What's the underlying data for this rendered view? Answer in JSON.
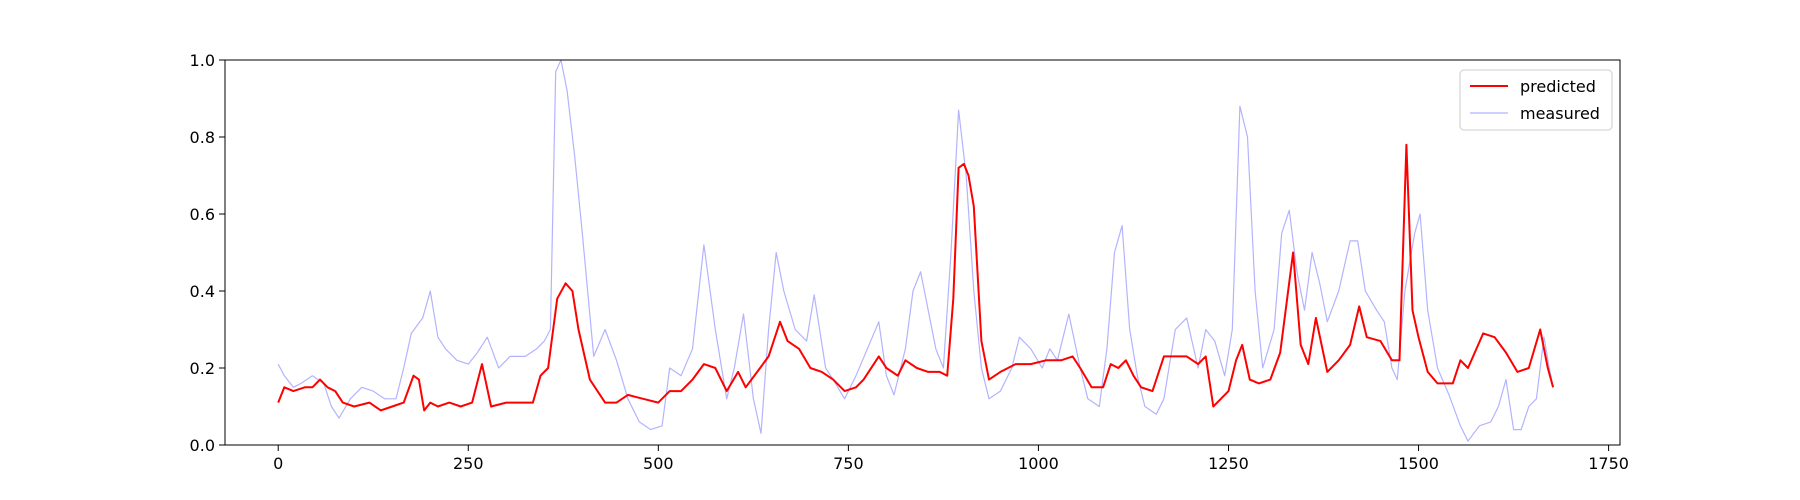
{
  "chart_data": {
    "type": "line",
    "title": "",
    "xlabel": "",
    "ylabel": "",
    "xlim": [
      -70,
      1765
    ],
    "ylim": [
      0.0,
      1.0
    ],
    "grid": false,
    "legend_position": "top-right",
    "x_ticks": [
      0,
      250,
      500,
      750,
      1000,
      1250,
      1500,
      1750
    ],
    "x_tick_labels": [
      "0",
      "250",
      "500",
      "750",
      "1000",
      "1250",
      "1500",
      "1750"
    ],
    "y_ticks": [
      0.0,
      0.2,
      0.4,
      0.6,
      0.8,
      1.0
    ],
    "y_tick_labels": [
      "0.0",
      "0.2",
      "0.4",
      "0.6",
      "0.8",
      "1.0"
    ],
    "series": [
      {
        "name": "predicted",
        "color": "#ff0000",
        "points": [
          [
            0,
            0.11
          ],
          [
            8,
            0.15
          ],
          [
            20,
            0.14
          ],
          [
            35,
            0.15
          ],
          [
            45,
            0.15
          ],
          [
            55,
            0.17
          ],
          [
            65,
            0.15
          ],
          [
            75,
            0.14
          ],
          [
            85,
            0.11
          ],
          [
            100,
            0.1
          ],
          [
            120,
            0.11
          ],
          [
            135,
            0.09
          ],
          [
            150,
            0.1
          ],
          [
            165,
            0.11
          ],
          [
            178,
            0.18
          ],
          [
            185,
            0.17
          ],
          [
            192,
            0.09
          ],
          [
            200,
            0.11
          ],
          [
            210,
            0.1
          ],
          [
            225,
            0.11
          ],
          [
            240,
            0.1
          ],
          [
            255,
            0.11
          ],
          [
            268,
            0.21
          ],
          [
            280,
            0.1
          ],
          [
            300,
            0.11
          ],
          [
            320,
            0.11
          ],
          [
            335,
            0.11
          ],
          [
            345,
            0.18
          ],
          [
            355,
            0.2
          ],
          [
            367,
            0.38
          ],
          [
            378,
            0.42
          ],
          [
            387,
            0.4
          ],
          [
            395,
            0.3
          ],
          [
            410,
            0.17
          ],
          [
            430,
            0.11
          ],
          [
            445,
            0.11
          ],
          [
            460,
            0.13
          ],
          [
            480,
            0.12
          ],
          [
            500,
            0.11
          ],
          [
            515,
            0.14
          ],
          [
            530,
            0.14
          ],
          [
            545,
            0.17
          ],
          [
            560,
            0.21
          ],
          [
            575,
            0.2
          ],
          [
            590,
            0.14
          ],
          [
            605,
            0.19
          ],
          [
            615,
            0.15
          ],
          [
            630,
            0.19
          ],
          [
            645,
            0.23
          ],
          [
            660,
            0.32
          ],
          [
            670,
            0.27
          ],
          [
            685,
            0.25
          ],
          [
            700,
            0.2
          ],
          [
            715,
            0.19
          ],
          [
            730,
            0.17
          ],
          [
            745,
            0.14
          ],
          [
            760,
            0.15
          ],
          [
            770,
            0.17
          ],
          [
            790,
            0.23
          ],
          [
            800,
            0.2
          ],
          [
            815,
            0.18
          ],
          [
            825,
            0.22
          ],
          [
            840,
            0.2
          ],
          [
            855,
            0.19
          ],
          [
            870,
            0.19
          ],
          [
            880,
            0.18
          ],
          [
            888,
            0.38
          ],
          [
            895,
            0.72
          ],
          [
            902,
            0.73
          ],
          [
            908,
            0.7
          ],
          [
            915,
            0.62
          ],
          [
            925,
            0.27
          ],
          [
            935,
            0.17
          ],
          [
            950,
            0.19
          ],
          [
            970,
            0.21
          ],
          [
            990,
            0.21
          ],
          [
            1010,
            0.22
          ],
          [
            1030,
            0.22
          ],
          [
            1045,
            0.23
          ],
          [
            1055,
            0.2
          ],
          [
            1070,
            0.15
          ],
          [
            1085,
            0.15
          ],
          [
            1095,
            0.21
          ],
          [
            1105,
            0.2
          ],
          [
            1115,
            0.22
          ],
          [
            1125,
            0.18
          ],
          [
            1135,
            0.15
          ],
          [
            1150,
            0.14
          ],
          [
            1165,
            0.23
          ],
          [
            1180,
            0.23
          ],
          [
            1195,
            0.23
          ],
          [
            1210,
            0.21
          ],
          [
            1220,
            0.23
          ],
          [
            1230,
            0.1
          ],
          [
            1240,
            0.12
          ],
          [
            1250,
            0.14
          ],
          [
            1260,
            0.22
          ],
          [
            1268,
            0.26
          ],
          [
            1278,
            0.17
          ],
          [
            1290,
            0.16
          ],
          [
            1305,
            0.17
          ],
          [
            1318,
            0.24
          ],
          [
            1335,
            0.5
          ],
          [
            1345,
            0.26
          ],
          [
            1355,
            0.21
          ],
          [
            1365,
            0.33
          ],
          [
            1380,
            0.19
          ],
          [
            1395,
            0.22
          ],
          [
            1410,
            0.26
          ],
          [
            1422,
            0.36
          ],
          [
            1432,
            0.28
          ],
          [
            1450,
            0.27
          ],
          [
            1465,
            0.22
          ],
          [
            1475,
            0.22
          ],
          [
            1484,
            0.78
          ],
          [
            1492,
            0.35
          ],
          [
            1500,
            0.28
          ],
          [
            1512,
            0.19
          ],
          [
            1525,
            0.16
          ],
          [
            1545,
            0.16
          ],
          [
            1555,
            0.22
          ],
          [
            1565,
            0.2
          ],
          [
            1585,
            0.29
          ],
          [
            1600,
            0.28
          ],
          [
            1615,
            0.24
          ],
          [
            1630,
            0.19
          ],
          [
            1645,
            0.2
          ],
          [
            1660,
            0.3
          ],
          [
            1670,
            0.2
          ],
          [
            1677,
            0.15
          ]
        ]
      },
      {
        "name": "measured",
        "color": "#b3b3ff",
        "points": [
          [
            0,
            0.21
          ],
          [
            8,
            0.18
          ],
          [
            20,
            0.15
          ],
          [
            30,
            0.16
          ],
          [
            45,
            0.18
          ],
          [
            60,
            0.16
          ],
          [
            70,
            0.1
          ],
          [
            80,
            0.07
          ],
          [
            95,
            0.12
          ],
          [
            110,
            0.15
          ],
          [
            125,
            0.14
          ],
          [
            140,
            0.12
          ],
          [
            155,
            0.12
          ],
          [
            165,
            0.2
          ],
          [
            175,
            0.29
          ],
          [
            190,
            0.33
          ],
          [
            200,
            0.4
          ],
          [
            210,
            0.28
          ],
          [
            220,
            0.25
          ],
          [
            235,
            0.22
          ],
          [
            250,
            0.21
          ],
          [
            262,
            0.24
          ],
          [
            275,
            0.28
          ],
          [
            290,
            0.2
          ],
          [
            305,
            0.23
          ],
          [
            325,
            0.23
          ],
          [
            340,
            0.25
          ],
          [
            350,
            0.27
          ],
          [
            358,
            0.3
          ],
          [
            365,
            0.97
          ],
          [
            372,
            1.0
          ],
          [
            380,
            0.92
          ],
          [
            390,
            0.75
          ],
          [
            400,
            0.55
          ],
          [
            415,
            0.23
          ],
          [
            430,
            0.3
          ],
          [
            445,
            0.22
          ],
          [
            460,
            0.12
          ],
          [
            475,
            0.06
          ],
          [
            490,
            0.04
          ],
          [
            505,
            0.05
          ],
          [
            515,
            0.2
          ],
          [
            530,
            0.18
          ],
          [
            545,
            0.25
          ],
          [
            560,
            0.52
          ],
          [
            575,
            0.3
          ],
          [
            590,
            0.12
          ],
          [
            600,
            0.2
          ],
          [
            612,
            0.34
          ],
          [
            625,
            0.12
          ],
          [
            635,
            0.03
          ],
          [
            645,
            0.3
          ],
          [
            655,
            0.5
          ],
          [
            665,
            0.4
          ],
          [
            680,
            0.3
          ],
          [
            695,
            0.27
          ],
          [
            705,
            0.39
          ],
          [
            720,
            0.2
          ],
          [
            730,
            0.17
          ],
          [
            745,
            0.12
          ],
          [
            760,
            0.18
          ],
          [
            775,
            0.25
          ],
          [
            790,
            0.32
          ],
          [
            800,
            0.18
          ],
          [
            810,
            0.13
          ],
          [
            825,
            0.25
          ],
          [
            835,
            0.4
          ],
          [
            845,
            0.45
          ],
          [
            855,
            0.35
          ],
          [
            865,
            0.25
          ],
          [
            875,
            0.2
          ],
          [
            885,
            0.5
          ],
          [
            895,
            0.87
          ],
          [
            905,
            0.7
          ],
          [
            915,
            0.4
          ],
          [
            925,
            0.2
          ],
          [
            935,
            0.12
          ],
          [
            950,
            0.14
          ],
          [
            965,
            0.2
          ],
          [
            975,
            0.28
          ],
          [
            990,
            0.25
          ],
          [
            1005,
            0.2
          ],
          [
            1015,
            0.25
          ],
          [
            1025,
            0.22
          ],
          [
            1040,
            0.34
          ],
          [
            1055,
            0.2
          ],
          [
            1065,
            0.12
          ],
          [
            1080,
            0.1
          ],
          [
            1090,
            0.25
          ],
          [
            1100,
            0.5
          ],
          [
            1110,
            0.57
          ],
          [
            1120,
            0.3
          ],
          [
            1130,
            0.18
          ],
          [
            1140,
            0.1
          ],
          [
            1155,
            0.08
          ],
          [
            1165,
            0.12
          ],
          [
            1180,
            0.3
          ],
          [
            1195,
            0.33
          ],
          [
            1210,
            0.2
          ],
          [
            1220,
            0.3
          ],
          [
            1232,
            0.27
          ],
          [
            1245,
            0.18
          ],
          [
            1255,
            0.3
          ],
          [
            1265,
            0.88
          ],
          [
            1275,
            0.8
          ],
          [
            1285,
            0.4
          ],
          [
            1295,
            0.2
          ],
          [
            1310,
            0.3
          ],
          [
            1320,
            0.55
          ],
          [
            1330,
            0.61
          ],
          [
            1340,
            0.45
          ],
          [
            1350,
            0.35
          ],
          [
            1360,
            0.5
          ],
          [
            1370,
            0.42
          ],
          [
            1380,
            0.32
          ],
          [
            1395,
            0.4
          ],
          [
            1410,
            0.53
          ],
          [
            1420,
            0.53
          ],
          [
            1430,
            0.4
          ],
          [
            1445,
            0.35
          ],
          [
            1455,
            0.32
          ],
          [
            1465,
            0.2
          ],
          [
            1472,
            0.17
          ],
          [
            1482,
            0.4
          ],
          [
            1495,
            0.55
          ],
          [
            1502,
            0.6
          ],
          [
            1512,
            0.35
          ],
          [
            1525,
            0.2
          ],
          [
            1540,
            0.13
          ],
          [
            1555,
            0.05
          ],
          [
            1565,
            0.01
          ],
          [
            1580,
            0.05
          ],
          [
            1595,
            0.06
          ],
          [
            1605,
            0.1
          ],
          [
            1615,
            0.17
          ],
          [
            1625,
            0.04
          ],
          [
            1635,
            0.04
          ],
          [
            1645,
            0.1
          ],
          [
            1655,
            0.12
          ],
          [
            1665,
            0.28
          ],
          [
            1672,
            0.2
          ],
          [
            1677,
            0.15
          ]
        ]
      }
    ]
  }
}
